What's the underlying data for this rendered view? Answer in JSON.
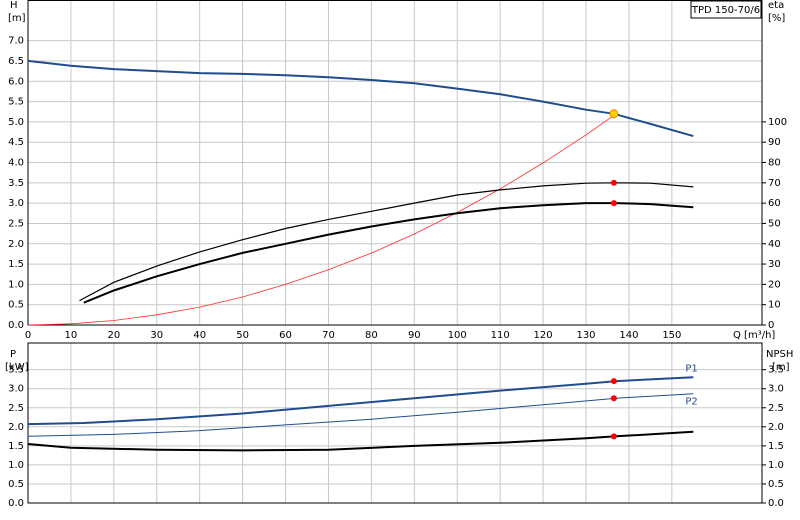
{
  "chart_data": [
    {
      "type": "line",
      "title": "TPD 150-70/6",
      "ylabel": "H",
      "yunit": "[m]",
      "y2label": "eta",
      "y2unit": "[%]",
      "xlabel": "Q [m³/h]",
      "xlim": [
        0,
        171
      ],
      "xticks": [
        0,
        10,
        20,
        30,
        40,
        50,
        60,
        70,
        80,
        90,
        100,
        110,
        120,
        130,
        140,
        150
      ],
      "ylim": [
        0,
        8
      ],
      "yticks": [
        {
          "value": 0,
          "label": "0.0"
        },
        {
          "value": 0.5,
          "label": "0.5"
        },
        {
          "value": 1,
          "label": "1.0"
        },
        {
          "value": 1.5,
          "label": "1.5"
        },
        {
          "value": 2,
          "label": "2.0"
        },
        {
          "value": 2.5,
          "label": "2.5"
        },
        {
          "value": 3,
          "label": "3.0"
        },
        {
          "value": 3.5,
          "label": "3.5"
        },
        {
          "value": 4,
          "label": "4.0"
        },
        {
          "value": 4.5,
          "label": "4.5"
        },
        {
          "value": 5,
          "label": "5.0"
        },
        {
          "value": 5.5,
          "label": "5.5"
        },
        {
          "value": 6,
          "label": "6.0"
        },
        {
          "value": 6.5,
          "label": "6.5"
        },
        {
          "value": 7,
          "label": "7.0"
        }
      ],
      "y2lim": [
        0,
        160
      ],
      "y2ticks": [
        0,
        10,
        20,
        30,
        40,
        50,
        60,
        70,
        80,
        90,
        100
      ],
      "grid": true,
      "series": [
        {
          "color": "#1f4e8c",
          "width": 2,
          "x": [
            0,
            10,
            20,
            30,
            40,
            50,
            60,
            70,
            80,
            90,
            100,
            110,
            120,
            130,
            136.5,
            145,
            155
          ],
          "values": [
            6.5,
            6.38,
            6.3,
            6.25,
            6.2,
            6.18,
            6.15,
            6.1,
            6.03,
            5.95,
            5.82,
            5.68,
            5.5,
            5.3,
            5.2,
            4.95,
            4.65
          ]
        },
        {
          "color": "#ff2a2a",
          "width": 0.8,
          "x": [
            0,
            10,
            20,
            30,
            40,
            50,
            60,
            70,
            80,
            90,
            100,
            110,
            120,
            130,
            137
          ],
          "values": [
            0,
            0.03,
            0.11,
            0.25,
            0.44,
            0.69,
            1.0,
            1.36,
            1.77,
            2.24,
            2.77,
            3.35,
            3.99,
            4.68,
            5.2
          ]
        },
        {
          "color": "#000000",
          "width": 1.2,
          "axis": "y2",
          "x": [
            12,
            20,
            30,
            40,
            50,
            60,
            70,
            80,
            90,
            100,
            110,
            120,
            130,
            137,
            145,
            155
          ],
          "values": [
            12,
            21,
            29,
            36,
            42,
            47.5,
            52,
            56,
            60,
            64,
            66.5,
            68.5,
            69.8,
            70,
            69.8,
            68
          ]
        },
        {
          "color": "#000000",
          "width": 2,
          "axis": "y2",
          "x": [
            13,
            20,
            30,
            40,
            50,
            60,
            70,
            80,
            90,
            100,
            110,
            120,
            130,
            137,
            145,
            155
          ],
          "values": [
            11,
            17,
            24,
            30,
            35.5,
            40,
            44.5,
            48.5,
            52,
            55,
            57.5,
            59,
            60,
            60,
            59.5,
            58
          ]
        },
        {
          "color": "#ffd400",
          "marker": true,
          "x": [
            136.5
          ],
          "values": [
            5.2
          ]
        },
        {
          "color": "#ff0000",
          "marker": true,
          "axis": "y2",
          "x": [
            136.5
          ],
          "values": [
            70
          ]
        },
        {
          "color": "#ff0000",
          "marker": true,
          "axis": "y2",
          "x": [
            136.5
          ],
          "values": [
            60
          ]
        }
      ]
    },
    {
      "type": "line",
      "ylabel": "P",
      "yunit": "[kW]",
      "y2label": "NPSH",
      "y2unit": "[m]",
      "xlim": [
        0,
        171
      ],
      "xticks": [
        0,
        10,
        20,
        30,
        40,
        50,
        60,
        70,
        80,
        90,
        100,
        110,
        120,
        130,
        140,
        150
      ],
      "ylim": [
        0,
        4.2
      ],
      "yticks": [
        {
          "value": 0,
          "label": "0.0"
        },
        {
          "value": 0.5,
          "label": "0.5"
        },
        {
          "value": 1,
          "label": "1.0"
        },
        {
          "value": 1.5,
          "label": "1.5"
        },
        {
          "value": 2,
          "label": "2.0"
        },
        {
          "value": 2.5,
          "label": "2.5"
        },
        {
          "value": 3,
          "label": "3.0"
        },
        {
          "value": 3.5,
          "label": "3.5"
        }
      ],
      "y2lim": [
        0,
        4.2
      ],
      "y2ticks": [
        {
          "value": 0,
          "label": "0.0"
        },
        {
          "value": 0.5,
          "label": "0.5"
        },
        {
          "value": 1,
          "label": "1.0"
        },
        {
          "value": 1.5,
          "label": "1.5"
        },
        {
          "value": 2,
          "label": "2.0"
        },
        {
          "value": 2.5,
          "label": "2.5"
        },
        {
          "value": 3,
          "label": "3.0"
        },
        {
          "value": 3.5,
          "label": "3.5"
        }
      ],
      "grid": true,
      "series": [
        {
          "name": "P1",
          "color": "#1f4e8c",
          "width": 2,
          "x": [
            0,
            13,
            30,
            50,
            70,
            90,
            110,
            130,
            137,
            155
          ],
          "values": [
            2.07,
            2.1,
            2.2,
            2.35,
            2.55,
            2.75,
            2.95,
            3.13,
            3.2,
            3.3
          ]
        },
        {
          "name": "P2",
          "color": "#1f4e8c",
          "width": 1,
          "x": [
            0,
            20,
            40,
            60,
            80,
            100,
            120,
            137,
            155
          ],
          "values": [
            1.75,
            1.8,
            1.9,
            2.05,
            2.2,
            2.38,
            2.58,
            2.75,
            2.87
          ]
        },
        {
          "color": "#000000",
          "width": 2,
          "axis": "y2",
          "x": [
            0,
            10,
            30,
            50,
            70,
            90,
            110,
            130,
            137,
            155
          ],
          "values": [
            1.55,
            1.45,
            1.4,
            1.38,
            1.4,
            1.5,
            1.58,
            1.7,
            1.75,
            1.87
          ]
        },
        {
          "color": "#ff0000",
          "marker": true,
          "x": [
            136.5
          ],
          "values": [
            3.2
          ]
        },
        {
          "color": "#ff0000",
          "marker": true,
          "x": [
            136.5
          ],
          "values": [
            2.75
          ]
        },
        {
          "color": "#ff0000",
          "marker": true,
          "axis": "y2",
          "x": [
            136.5
          ],
          "values": [
            1.75
          ]
        }
      ]
    }
  ]
}
